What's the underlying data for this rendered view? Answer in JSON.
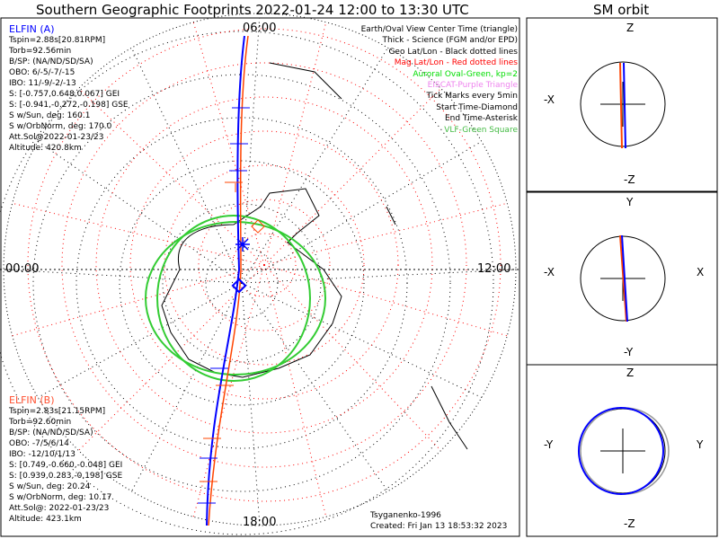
{
  "title": "Southern Geographic Footprints 2022-01-24 12:00 to 13:30 UTC",
  "orbit_title": "SM orbit",
  "time_labels": {
    "top": "06:00",
    "left": "00:00",
    "right": "12:00",
    "bottom": "18:00"
  },
  "elfin_a": {
    "name": "ELFIN (A)",
    "color": "#0000ff",
    "lines": [
      "Tspin=2.88s[20.81RPM]",
      "Torb=92.56min",
      "B/SP: (NA/ND/SD/SA)",
      "OBO: 6/-5/-7/-15",
      "IBO: 11/-9/-2/-13",
      "S: [-0.757,0.648,0.067] GEI",
      "S: [-0.941,-0.272,-0.198] GSE",
      "S w/Sun, deg: 160.1",
      "S w/OrbNorm, deg: 170.0",
      "Att.Sol@2022-01-23/23",
      "Altitude: 420.8km"
    ]
  },
  "elfin_b": {
    "name": "ELFIN (B)",
    "color": "#ff5030",
    "lines": [
      "Tspin=2.83s[21.15RPM]",
      "Torb=92.60min",
      "B/SP: (NA/ND/SD/SA)",
      "OBO: -7/5/6/14",
      "IBO: -12/10/1/13",
      "S: [0.749,-0.660,-0.048] GEI",
      "S: [0.939,0.283,-0.198] GSE",
      "S w/Sun, deg: 20.24",
      "S w/OrbNorm, deg: 10.17",
      "Att.Sol@: 2022-01-23/23",
      "Altitude: 423.1km"
    ]
  },
  "legend": [
    {
      "text": "Earth/Oval View Center Time (triangle)",
      "color": "#000000"
    },
    {
      "text": "Thick - Science (FGM and/or EPD)",
      "color": "#000000"
    },
    {
      "text": "Geo Lat/Lon - Black dotted lines",
      "color": "#000000"
    },
    {
      "text": "Mag Lat/Lon - Red dotted lines",
      "color": "#ff0000"
    },
    {
      "text": "Auroral Oval-Green, kp=2",
      "color": "#00dd00"
    },
    {
      "text": "EISCAT-Purple Triangle",
      "color": "#ee82ee"
    },
    {
      "text": "Tick Marks every 5min",
      "color": "#000000"
    },
    {
      "text": "Start Time-Diamond",
      "color": "#000000"
    },
    {
      "text": "End Time-Asterisk",
      "color": "#000000"
    },
    {
      "text": "VLF-Green Square",
      "color": "#44bb44"
    }
  ],
  "credits": [
    "Tsyganenko-1996",
    "Created: Fri Jan 13 18:53:32 2023"
  ],
  "orbit_panels": [
    {
      "top": "Z",
      "bottom": "-Z",
      "left": "-X",
      "right": ""
    },
    {
      "top": "Y",
      "bottom": "-Y",
      "left": "-X",
      "right": "X"
    },
    {
      "top": "Z",
      "bottom": "-Z",
      "left": "-Y",
      "right": "Y"
    }
  ],
  "chart_data": {
    "type": "scatter",
    "title": "Southern Geographic Footprints 2022-01-24 12:00 to 13:30 UTC",
    "projection": "south polar stereographic",
    "series": [
      {
        "name": "ELFIN (A)"
      },
      {
        "name": "ELFIN (B)"
      }
    ],
    "aurora_kp": 2
  }
}
